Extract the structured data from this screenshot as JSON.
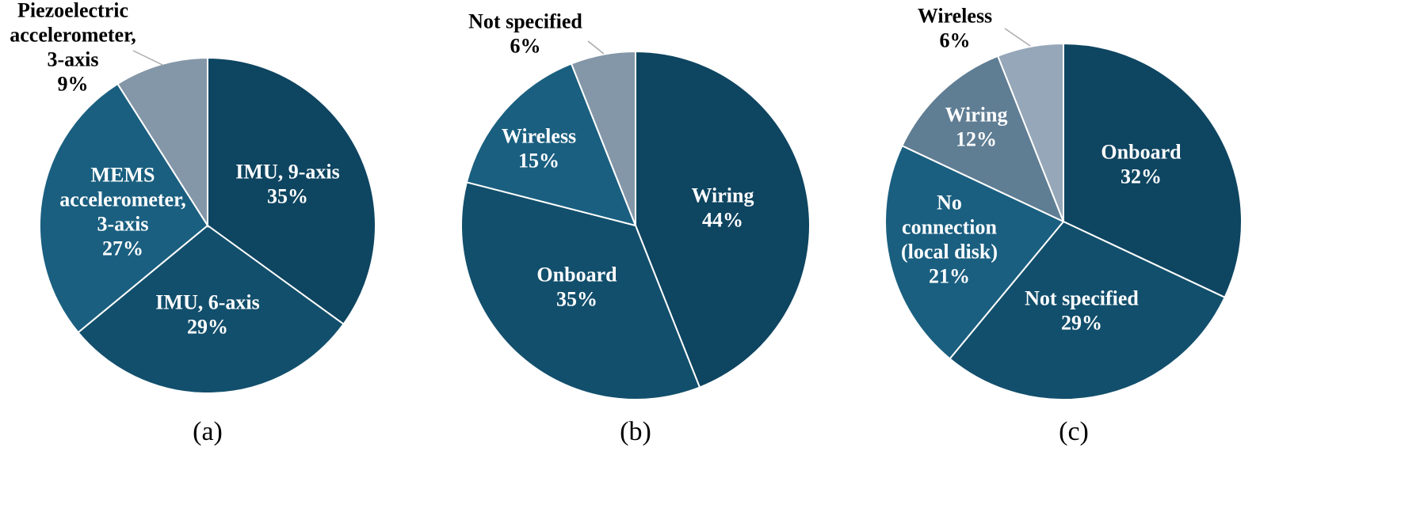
{
  "chart_data": [
    {
      "type": "pie",
      "title": "(a)",
      "categories": [
        "IMU, 9-axis",
        "IMU, 6-axis",
        "MEMS\naccelerometer,\n3-axis",
        "Piezoelectric\naccelerometer,\n3-axis"
      ],
      "values": [
        35,
        29,
        27,
        9
      ],
      "value_labels": [
        "35%",
        "29%",
        "27%",
        "9%"
      ],
      "colors": [
        "#0e4561",
        "#124f6c",
        "#1a5f80",
        "#8497a8"
      ]
    },
    {
      "type": "pie",
      "title": "(b)",
      "categories": [
        "Wiring",
        "Onboard",
        "Wireless",
        "Not specified"
      ],
      "values": [
        44,
        35,
        15,
        6
      ],
      "value_labels": [
        "44%",
        "35%",
        "15%",
        "6%"
      ],
      "colors": [
        "#0e4561",
        "#124f6c",
        "#1a5f80",
        "#8497a8"
      ]
    },
    {
      "type": "pie",
      "title": "(c)",
      "categories": [
        "Onboard",
        "Not specified",
        "No\nconnection\n(local disk)",
        "Wiring",
        "Wireless"
      ],
      "values": [
        32,
        29,
        21,
        12,
        6
      ],
      "value_labels": [
        "32%",
        "29%",
        "21%",
        "12%",
        "6%"
      ],
      "colors": [
        "#0e4561",
        "#124f6c",
        "#1a5f80",
        "#5f7d93",
        "#95a7b8"
      ]
    }
  ]
}
